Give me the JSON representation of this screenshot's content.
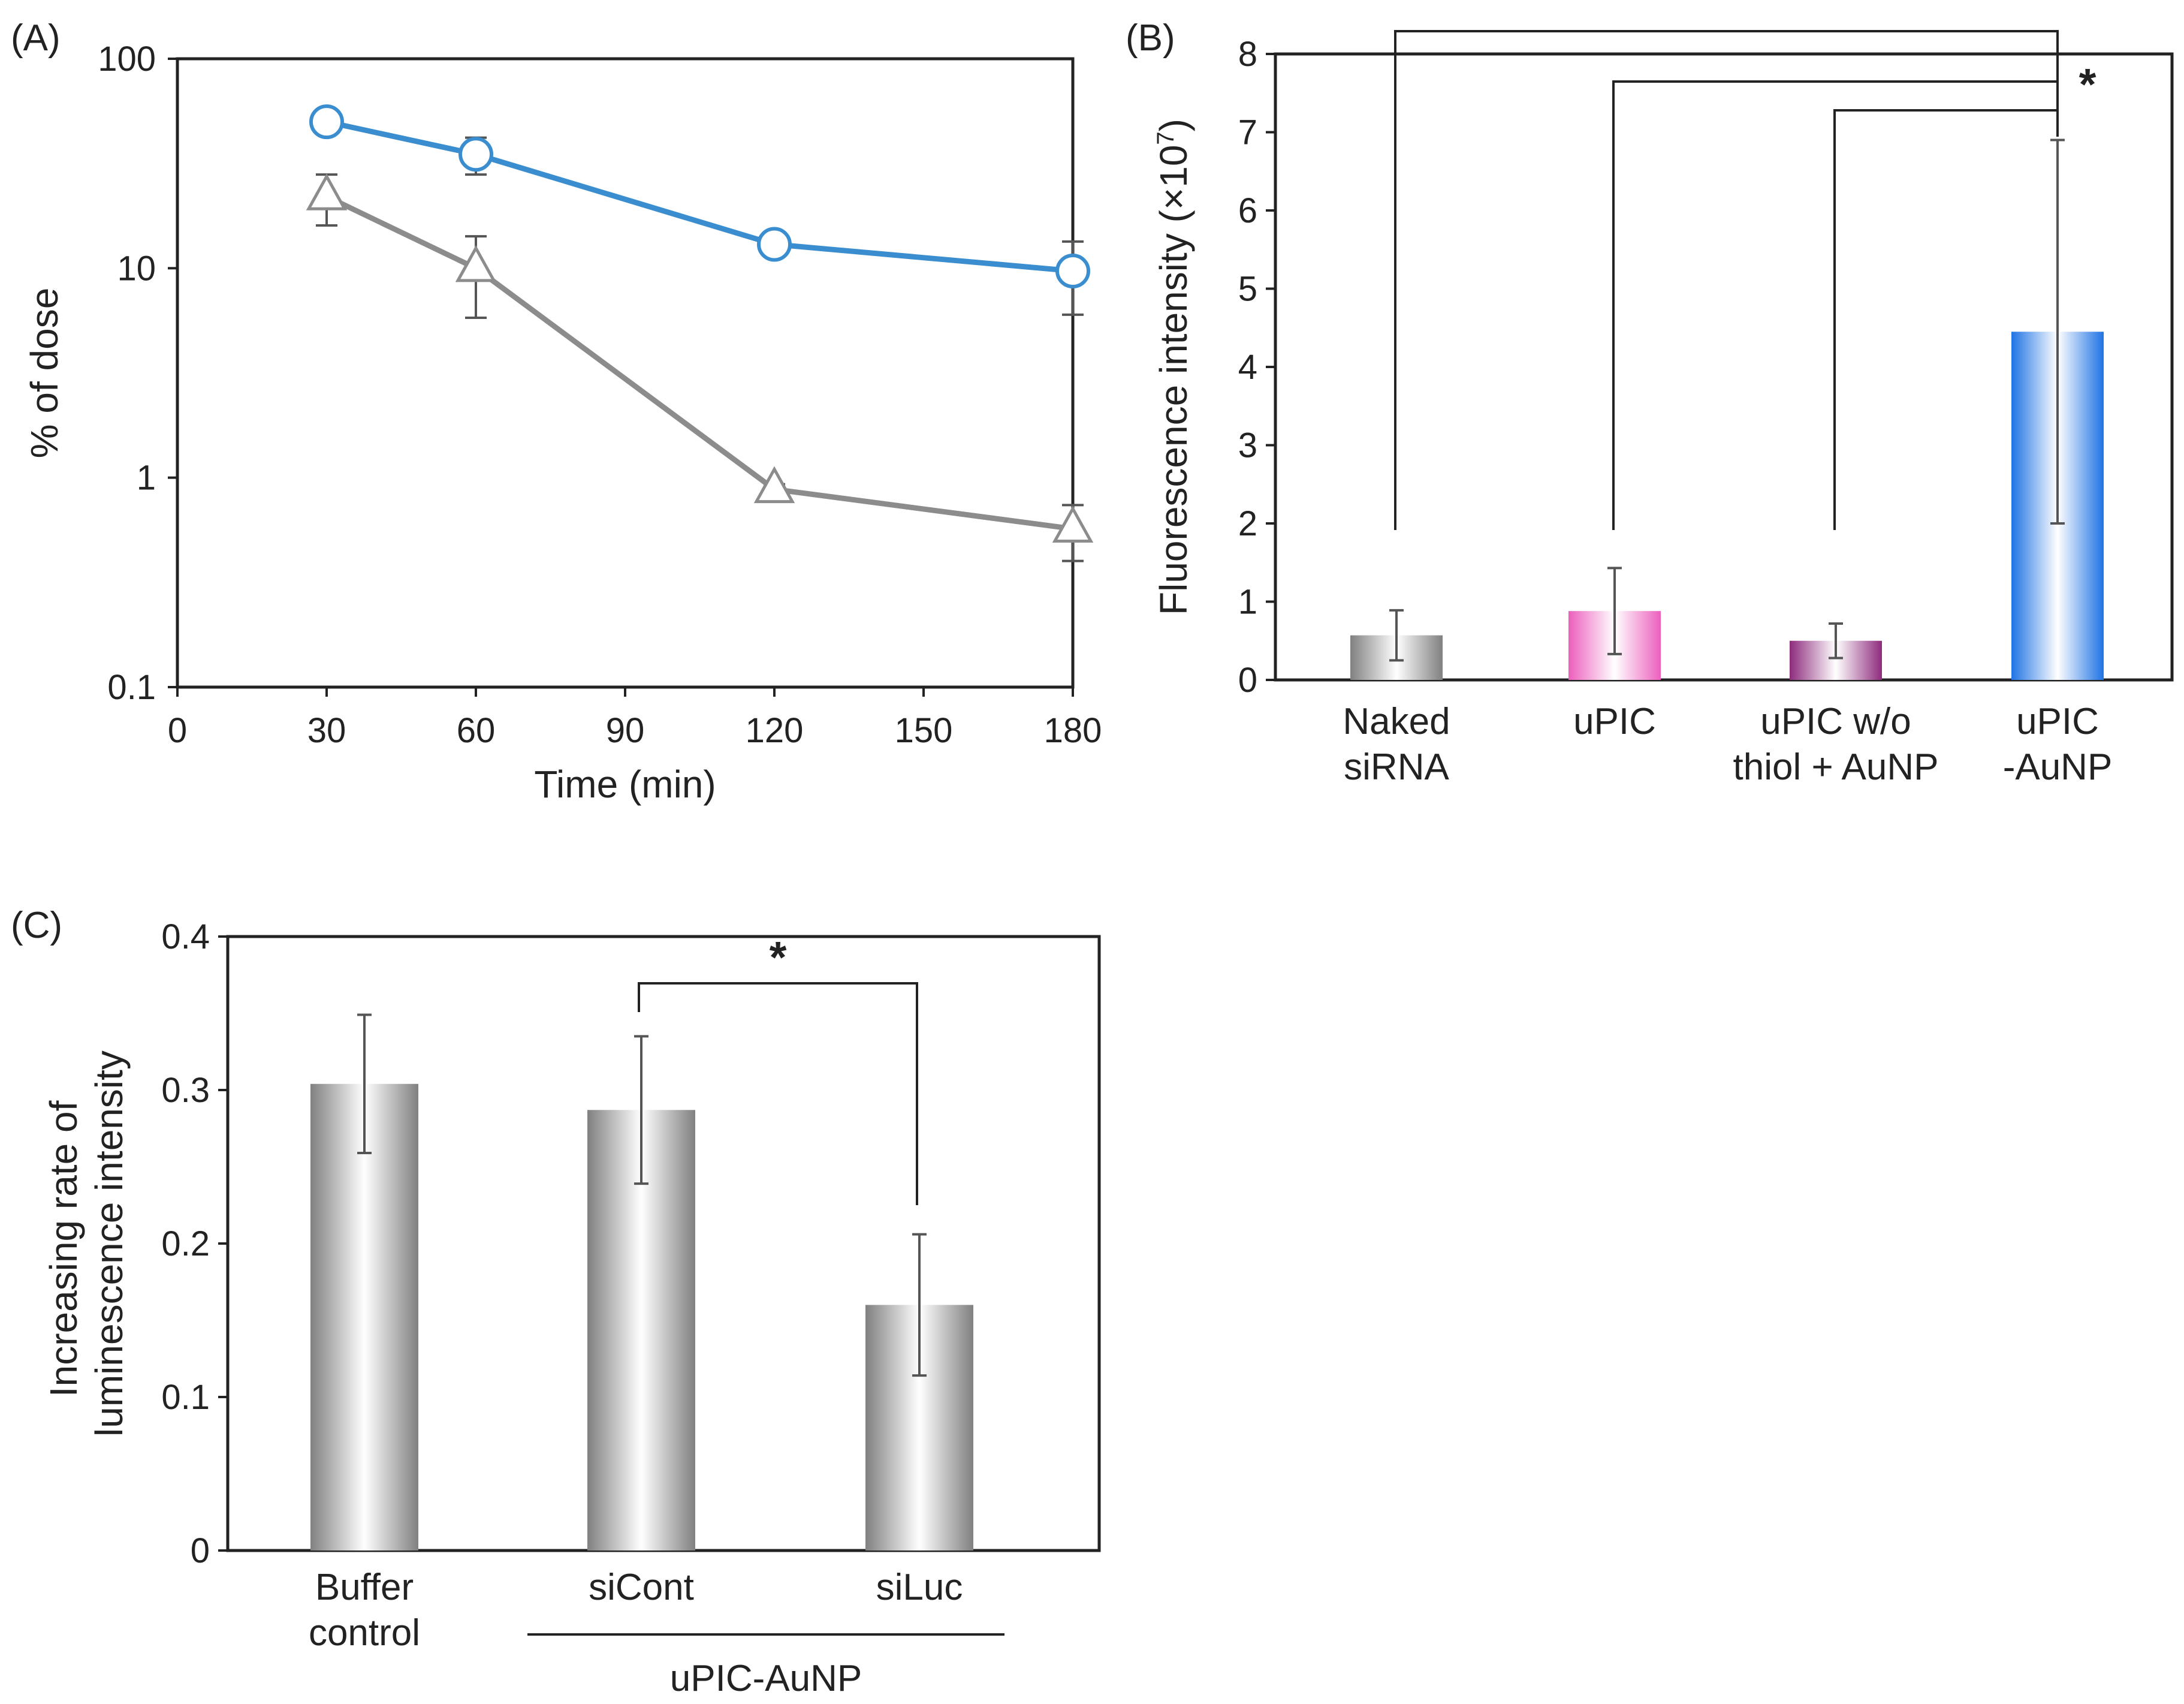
{
  "chart_data": [
    {
      "panel": "(A)",
      "type": "line",
      "xlabel": "Time (min)",
      "ylabel": "% of dose",
      "xlim": [
        0,
        180
      ],
      "ylim": [
        0.1,
        100
      ],
      "y_scale": "log",
      "x_ticks": [
        "0",
        "30",
        "60",
        "90",
        "120",
        "150",
        "180"
      ],
      "y_ticks": [
        "0.1",
        "1",
        "10",
        "100"
      ],
      "grid": false,
      "series": [
        {
          "marker": "circle",
          "color": "#3a8ed0",
          "x": [
            30,
            60,
            120,
            180
          ],
          "y": [
            50,
            35,
            13,
            9.7
          ],
          "err": [
            0,
            7,
            0,
            3.7
          ]
        },
        {
          "marker": "triangle",
          "color": "#8c8c8c",
          "x": [
            30,
            60,
            120,
            180
          ],
          "y": [
            22,
            10,
            0.88,
            0.57
          ],
          "err": [
            6,
            4.2,
            0.05,
            0.17
          ]
        }
      ]
    },
    {
      "panel": "(B)",
      "type": "bar",
      "ylabel_main": "Fluorescence intensity (×10",
      "ylabel_exp": "7",
      "ylabel_end": ")",
      "ylim": [
        0,
        8
      ],
      "y_ticks": [
        "0",
        "1",
        "2",
        "3",
        "4",
        "5",
        "6",
        "7",
        "8"
      ],
      "categories": [
        [
          "Naked",
          "siRNA"
        ],
        [
          "uPIC"
        ],
        [
          "uPIC w/o",
          "thiol + AuNP"
        ],
        [
          "uPIC",
          "-AuNP"
        ]
      ],
      "values": [
        0.57,
        0.88,
        0.5,
        4.45
      ],
      "err": [
        0.32,
        0.55,
        0.22,
        2.45
      ],
      "colors": [
        "#808080",
        "#ec5fbd",
        "#8d2b7c",
        "#1f73e4"
      ],
      "significance": {
        "label": "*",
        "comparisons": [
          [
            0,
            3
          ],
          [
            1,
            3
          ],
          [
            2,
            3
          ]
        ]
      },
      "grid": false
    },
    {
      "panel": "(C)",
      "type": "bar",
      "ylabel": [
        "Increasing rate of",
        "luminescence intensity"
      ],
      "ylim": [
        0,
        0.4
      ],
      "y_ticks": [
        "0",
        "0.1",
        "0.2",
        "0.3",
        "0.4"
      ],
      "categories": [
        [
          "Buffer",
          "control"
        ],
        [
          "siCont"
        ],
        [
          "siLuc"
        ]
      ],
      "values": [
        0.304,
        0.287,
        0.16
      ],
      "err": [
        0.045,
        0.048,
        0.046
      ],
      "colors": [
        "#808080",
        "#808080",
        "#808080"
      ],
      "group_label": "uPIC-AuNP",
      "significance": {
        "label": "*",
        "comparisons": [
          [
            1,
            2
          ]
        ]
      },
      "grid": false
    }
  ]
}
